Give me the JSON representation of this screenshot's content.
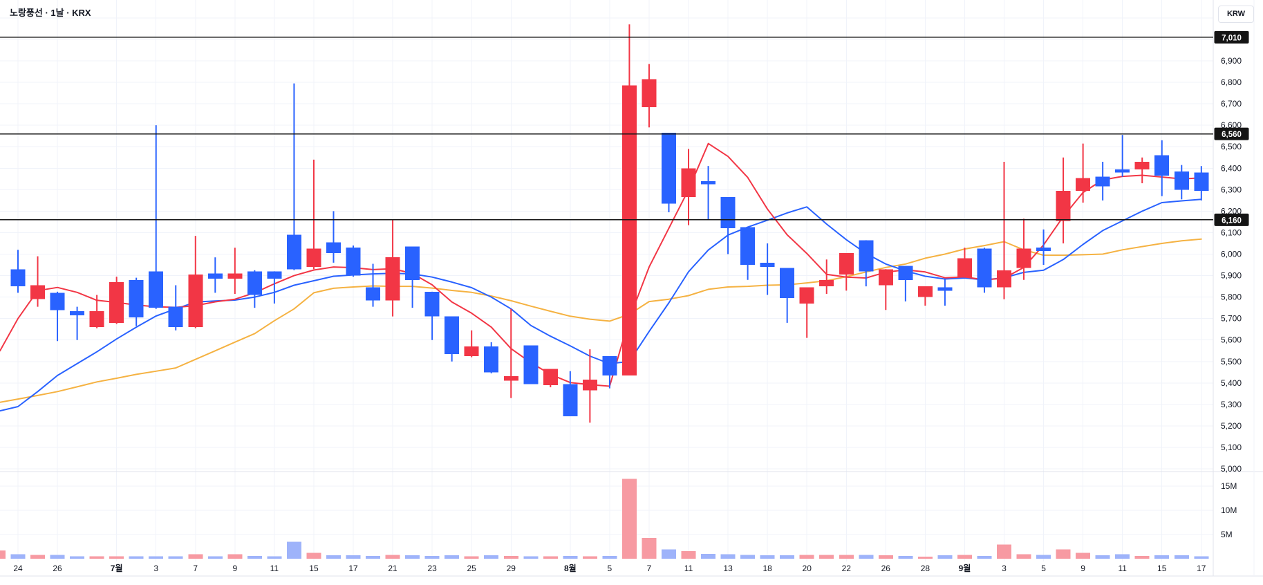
{
  "window": {
    "title": "노랑풍선 · 1날 · KRX",
    "currency_button": "KRW"
  },
  "colors": {
    "up": "#f23645",
    "down": "#2962ff",
    "vol_up": "#f79aa2",
    "vol_down": "#9eb3fa",
    "ma_fast": "#f23645",
    "ma_mid": "#2962ff",
    "ma_slow": "#f5b242",
    "grid": "#f0f3fa",
    "axis_border": "#e0e3eb",
    "text": "#131722",
    "drawn_line": "#141414",
    "marker_bg": "#141414",
    "marker_text": "#ffffff"
  },
  "price_axis": {
    "ticks": [
      {
        "v": 6900,
        "label": "6,900"
      },
      {
        "v": 6800,
        "label": "6,800"
      },
      {
        "v": 6700,
        "label": "6,700"
      },
      {
        "v": 6600,
        "label": "6,600"
      },
      {
        "v": 6500,
        "label": "6,500"
      },
      {
        "v": 6400,
        "label": "6,400"
      },
      {
        "v": 6300,
        "label": "6,300"
      },
      {
        "v": 6200,
        "label": "6,200"
      },
      {
        "v": 6100,
        "label": "6,100"
      },
      {
        "v": 6000,
        "label": "6,000"
      },
      {
        "v": 5900,
        "label": "5,900"
      },
      {
        "v": 5800,
        "label": "5,800"
      },
      {
        "v": 5700,
        "label": "5,700"
      },
      {
        "v": 5600,
        "label": "5,600"
      },
      {
        "v": 5500,
        "label": "5,500"
      },
      {
        "v": 5400,
        "label": "5,400"
      },
      {
        "v": 5300,
        "label": "5,300"
      },
      {
        "v": 5200,
        "label": "5,200"
      },
      {
        "v": 5100,
        "label": "5,100"
      },
      {
        "v": 5000,
        "label": "5,000"
      }
    ],
    "marked_levels": [
      {
        "v": 7010,
        "label": "7,010"
      },
      {
        "v": 6560,
        "label": "6,560"
      },
      {
        "v": 6160,
        "label": "6,160"
      }
    ]
  },
  "volume_axis": [
    {
      "v": 15,
      "label": "15M"
    },
    {
      "v": 10,
      "label": "10M"
    },
    {
      "v": 5,
      "label": "5M"
    }
  ],
  "chart_data": {
    "type": "candlestick",
    "title": "노랑풍선",
    "interval": "1날",
    "exchange": "KRX",
    "currency": "KRW",
    "ylim": [
      5000,
      7100
    ],
    "volume_unit": "M",
    "grid": true,
    "x_ticks": [
      {
        "i": 0,
        "label": "24",
        "bold": false
      },
      {
        "i": 2,
        "label": "26",
        "bold": false
      },
      {
        "i": 5,
        "label": "7월",
        "bold": true
      },
      {
        "i": 7,
        "label": "3",
        "bold": false
      },
      {
        "i": 9,
        "label": "7",
        "bold": false
      },
      {
        "i": 11,
        "label": "9",
        "bold": false
      },
      {
        "i": 13,
        "label": "11",
        "bold": false
      },
      {
        "i": 15,
        "label": "15",
        "bold": false
      },
      {
        "i": 17,
        "label": "17",
        "bold": false
      },
      {
        "i": 19,
        "label": "21",
        "bold": false
      },
      {
        "i": 21,
        "label": "23",
        "bold": false
      },
      {
        "i": 23,
        "label": "25",
        "bold": false
      },
      {
        "i": 25,
        "label": "29",
        "bold": false
      },
      {
        "i": 28,
        "label": "8월",
        "bold": true
      },
      {
        "i": 30,
        "label": "5",
        "bold": false
      },
      {
        "i": 32,
        "label": "7",
        "bold": false
      },
      {
        "i": 34,
        "label": "11",
        "bold": false
      },
      {
        "i": 36,
        "label": "13",
        "bold": false
      },
      {
        "i": 38,
        "label": "18",
        "bold": false
      },
      {
        "i": 40,
        "label": "20",
        "bold": false
      },
      {
        "i": 42,
        "label": "22",
        "bold": false
      },
      {
        "i": 44,
        "label": "26",
        "bold": false
      },
      {
        "i": 46,
        "label": "28",
        "bold": false
      },
      {
        "i": 48,
        "label": "9월",
        "bold": true
      },
      {
        "i": 50,
        "label": "3",
        "bold": false
      },
      {
        "i": 52,
        "label": "5",
        "bold": false
      },
      {
        "i": 54,
        "label": "9",
        "bold": false
      },
      {
        "i": 56,
        "label": "11",
        "bold": false
      },
      {
        "i": 58,
        "label": "15",
        "bold": false
      },
      {
        "i": 60,
        "label": "17",
        "bold": false
      }
    ],
    "candles": [
      [
        5930,
        6020,
        5820,
        5850,
        0.9
      ],
      [
        5790,
        5990,
        5755,
        5855,
        0.8
      ],
      [
        5820,
        5825,
        5595,
        5740,
        0.8
      ],
      [
        5735,
        5755,
        5600,
        5715,
        0.5
      ],
      [
        5660,
        5810,
        5655,
        5735,
        0.5
      ],
      [
        5680,
        5895,
        5675,
        5870,
        0.5
      ],
      [
        5880,
        5890,
        5665,
        5705,
        0.5
      ],
      [
        5920,
        6600,
        5745,
        5750,
        0.5
      ],
      [
        5755,
        5855,
        5645,
        5660,
        0.5
      ],
      [
        5660,
        6085,
        5655,
        5905,
        0.9
      ],
      [
        5910,
        5985,
        5820,
        5885,
        0.5
      ],
      [
        5885,
        6030,
        5815,
        5910,
        0.9
      ],
      [
        5920,
        5925,
        5750,
        5810,
        0.6
      ],
      [
        5920,
        5920,
        5770,
        5885,
        0.5
      ],
      [
        6090,
        6795,
        5925,
        5930,
        3.5
      ],
      [
        5940,
        6440,
        5930,
        6025,
        1.2
      ],
      [
        6055,
        6200,
        5960,
        6005,
        0.7
      ],
      [
        6030,
        6040,
        5895,
        5900,
        0.7
      ],
      [
        5845,
        5955,
        5755,
        5785,
        0.6
      ],
      [
        5785,
        6160,
        5710,
        5985,
        0.8
      ],
      [
        6035,
        6035,
        5750,
        5880,
        0.7
      ],
      [
        5825,
        5825,
        5600,
        5710,
        0.6
      ],
      [
        5710,
        5710,
        5500,
        5535,
        0.7
      ],
      [
        5525,
        5645,
        5520,
        5570,
        0.5
      ],
      [
        5570,
        5590,
        5445,
        5450,
        0.7
      ],
      [
        5410,
        5745,
        5330,
        5432,
        0.6
      ],
      [
        5575,
        5575,
        5395,
        5395,
        0.5
      ],
      [
        5390,
        5465,
        5380,
        5465,
        0.5
      ],
      [
        5395,
        5455,
        5245,
        5245,
        0.6
      ],
      [
        5365,
        5557,
        5215,
        5415,
        0.5
      ],
      [
        5525,
        5525,
        5375,
        5435,
        0.6
      ],
      [
        5435,
        7070,
        5435,
        6785,
        16.5
      ],
      [
        6685,
        6885,
        6590,
        6815,
        4.3
      ],
      [
        6565,
        6565,
        6195,
        6235,
        1.9
      ],
      [
        6265,
        6490,
        6135,
        6400,
        1.6
      ],
      [
        6340,
        6410,
        6160,
        6325,
        1.0
      ],
      [
        6265,
        6265,
        6000,
        6120,
        0.9
      ],
      [
        6125,
        6125,
        5880,
        5950,
        0.8
      ],
      [
        5960,
        6050,
        5810,
        5940,
        0.7
      ],
      [
        5935,
        5935,
        5680,
        5795,
        0.7
      ],
      [
        5770,
        5845,
        5610,
        5845,
        0.8
      ],
      [
        5850,
        5975,
        5815,
        5880,
        0.8
      ],
      [
        5905,
        6005,
        5830,
        6005,
        0.8
      ],
      [
        6065,
        6065,
        5850,
        5920,
        0.8
      ],
      [
        5855,
        5930,
        5740,
        5930,
        0.7
      ],
      [
        5945,
        5945,
        5780,
        5880,
        0.6
      ],
      [
        5800,
        5850,
        5760,
        5850,
        0.4
      ],
      [
        5845,
        5885,
        5760,
        5830,
        0.7
      ],
      [
        5890,
        6030,
        5890,
        5980,
        0.8
      ],
      [
        6025,
        6030,
        5820,
        5845,
        0.6
      ],
      [
        5845,
        6430,
        5790,
        5925,
        2.9
      ],
      [
        5935,
        6165,
        5880,
        6025,
        0.9
      ],
      [
        6030,
        6115,
        5950,
        6015,
        0.8
      ],
      [
        6155,
        6450,
        6050,
        6295,
        1.9
      ],
      [
        6295,
        6515,
        6240,
        6355,
        1.2
      ],
      [
        6360,
        6430,
        6250,
        6315,
        0.7
      ],
      [
        6395,
        6555,
        6360,
        6380,
        0.9
      ],
      [
        6395,
        6450,
        6330,
        6430,
        0.6
      ],
      [
        6460,
        6530,
        6270,
        6365,
        0.7
      ],
      [
        6385,
        6415,
        6255,
        6300,
        0.7
      ],
      [
        6380,
        6410,
        6250,
        6295,
        0.5
      ]
    ],
    "edge_volume_bar": {
      "value_m": 1.7,
      "direction": "up"
    },
    "moving_averages": {
      "ma_fast_red": [
        5700,
        5830,
        5845,
        5822,
        5785,
        5775,
        5763,
        5755,
        5752,
        5760,
        5778,
        5790,
        5820,
        5862,
        5900,
        5926,
        5940,
        5937,
        5928,
        5932,
        5910,
        5857,
        5777,
        5725,
        5660,
        5560,
        5495,
        5440,
        5402,
        5392,
        5385,
        5700,
        5940,
        6120,
        6300,
        6515,
        6455,
        6357,
        6210,
        6090,
        6003,
        5906,
        5893,
        5889,
        5916,
        5927,
        5917,
        5890,
        5894,
        5880,
        5888,
        5938,
        6043,
        6175,
        6287,
        6346,
        6362,
        6367,
        6359,
        6350,
        6355
      ],
      "ma_mid_blue": [
        5290,
        5360,
        5435,
        5490,
        5545,
        5605,
        5660,
        5712,
        5745,
        5777,
        5782,
        5786,
        5800,
        5822,
        5855,
        5876,
        5897,
        5903,
        5908,
        5911,
        5908,
        5893,
        5870,
        5844,
        5800,
        5745,
        5668,
        5618,
        5573,
        5525,
        5490,
        5500,
        5640,
        5773,
        5918,
        6019,
        6089,
        6126,
        6158,
        6192,
        6220,
        6140,
        6067,
        6003,
        5954,
        5922,
        5897,
        5884,
        5889,
        5880,
        5890,
        5915,
        5925,
        5975,
        6045,
        6110,
        6155,
        6200,
        6240,
        6248,
        6255
      ],
      "ma_slow_yellow": [
        5325,
        5342,
        5360,
        5382,
        5405,
        5422,
        5440,
        5455,
        5470,
        5510,
        5550,
        5590,
        5630,
        5690,
        5745,
        5820,
        5841,
        5847,
        5852,
        5850,
        5850,
        5842,
        5831,
        5822,
        5805,
        5783,
        5758,
        5734,
        5711,
        5697,
        5688,
        5720,
        5779,
        5790,
        5807,
        5836,
        5847,
        5850,
        5855,
        5857,
        5866,
        5876,
        5895,
        5917,
        5938,
        5954,
        5981,
        6000,
        6024,
        6040,
        6058,
        6020,
        5995,
        5995,
        5997,
        6000,
        6020,
        6035,
        6050,
        6062,
        6070
      ],
      "lead_in": {
        "red": 5550,
        "blue": 5270,
        "yellow": 5310
      }
    },
    "horizontal_lines": [
      7010,
      6560,
      6160
    ]
  }
}
